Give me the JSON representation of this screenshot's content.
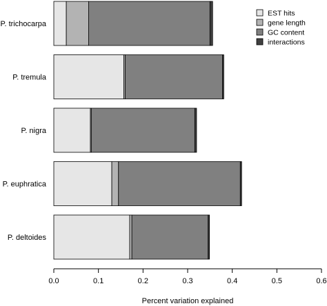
{
  "chart_data": {
    "type": "bar",
    "orientation": "horizontal",
    "stacked": true,
    "categories": [
      "P. trichocarpa",
      "P. tremula",
      "P. nigra",
      "P. euphratica",
      "P. deltoides"
    ],
    "series": [
      {
        "name": "EST hits",
        "color": "#e6e6e6",
        "values": [
          0.028,
          0.157,
          0.082,
          0.13,
          0.17
        ]
      },
      {
        "name": "gene length",
        "color": "#b3b3b3",
        "values": [
          0.05,
          0.003,
          0.002,
          0.015,
          0.005
        ]
      },
      {
        "name": "GC content",
        "color": "#808080",
        "values": [
          0.272,
          0.218,
          0.232,
          0.273,
          0.171
        ]
      },
      {
        "name": "interactions",
        "color": "#404040",
        "values": [
          0.006,
          0.003,
          0.004,
          0.003,
          0.003
        ]
      }
    ],
    "xlabel": "Percent variation explained",
    "ylabel": "",
    "xlim": [
      0,
      0.6
    ],
    "xticks": [
      "0.0",
      "0.1",
      "0.2",
      "0.3",
      "0.4",
      "0.5",
      "0.6"
    ],
    "grid": false,
    "legend_position": "top-right"
  }
}
